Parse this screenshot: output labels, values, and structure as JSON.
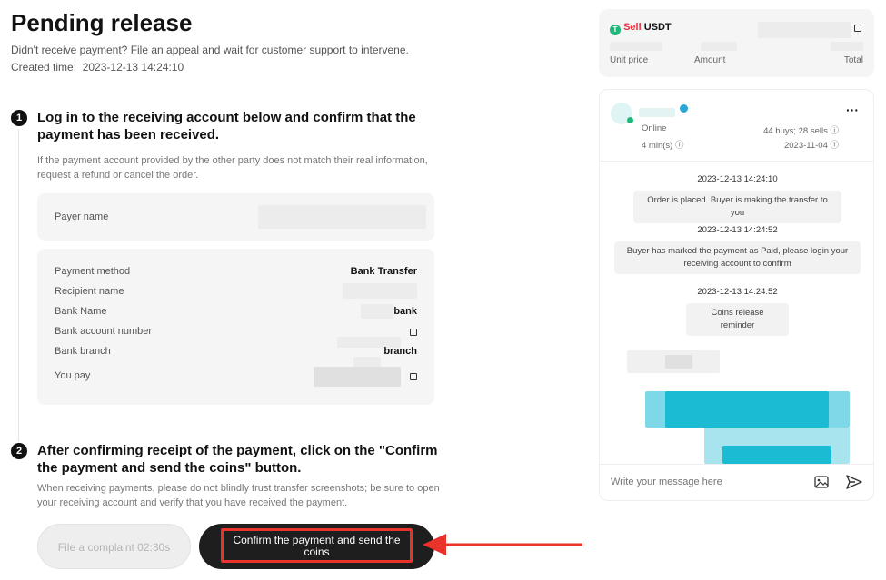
{
  "header": {
    "title": "Pending release",
    "subtitle": "Didn't receive payment? File an appeal and wait for customer support to intervene.",
    "created_label": "Created time:",
    "created_value": "2023-12-13 14:24:10"
  },
  "step1": {
    "number": "1",
    "title": "Log in to the receiving account below and confirm that the payment has been received.",
    "note": "If the payment account provided by the other party does not match their real information, request a refund or cancel the order.",
    "payer_label": "Payer name",
    "rows": [
      {
        "label": "Payment method",
        "value": "Bank Transfer"
      },
      {
        "label": "Recipient name",
        "value": ""
      },
      {
        "label": "Bank Name",
        "value": "bank"
      },
      {
        "label": "Bank account number",
        "value": ""
      },
      {
        "label": "Bank branch",
        "value": "branch"
      },
      {
        "label": "You pay",
        "value": ""
      }
    ]
  },
  "step2": {
    "number": "2",
    "title": "After confirming receipt of the payment, click on the \"Confirm the payment and send the coins\" button.",
    "note": "When receiving payments, please do not blindly trust transfer screenshots; be sure to open your receiving account and verify that you have received the payment."
  },
  "actions": {
    "complaint": "File a complaint 02:30s",
    "confirm": "Confirm the payment and send the coins"
  },
  "order": {
    "side": "Sell",
    "asset": "USDT",
    "unit_price_label": "Unit price",
    "amount_label": "Amount",
    "total_label": "Total"
  },
  "counterparty": {
    "status": "Online",
    "response_time": "4 min(s)",
    "trades": "44 buys; 28 sells",
    "joined": "2023-11-04",
    "more": "···"
  },
  "chat": {
    "messages": [
      {
        "time": "2023-12-13 14:24:10",
        "text": "Order is placed. Buyer is making the transfer to you"
      },
      {
        "time": "2023-12-13 14:24:52",
        "text": "Buyer has marked the payment as Paid, please login your receiving account to confirm"
      },
      {
        "time": "2023-12-13 14:24:52",
        "text": "Coins release reminder"
      }
    ],
    "placeholder": "Write your message here"
  },
  "colors": {
    "sell": "#e8323c",
    "accent_green": "#1fb87a",
    "annotation": "#e8322a",
    "primary": "#121212"
  }
}
